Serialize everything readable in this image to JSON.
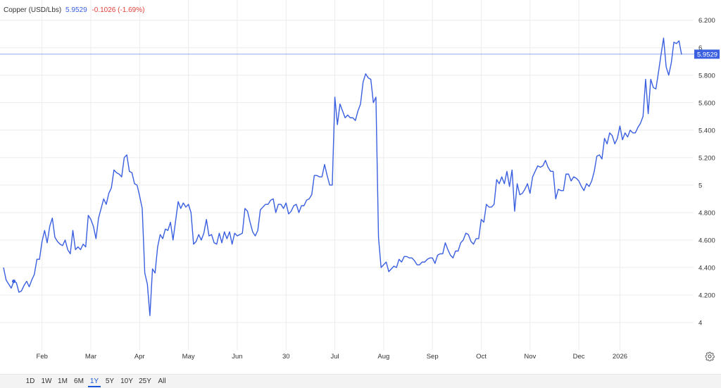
{
  "legend": {
    "name": "Copper (USD/Lbs)",
    "value": "5.9529",
    "change": "-0.1026",
    "change_pct": "(-1.69%)"
  },
  "colors": {
    "line": "#3a5fe0",
    "grid": "#ececec",
    "value_text": "#3a5fe0",
    "change_text": "#e0413a",
    "last_tag_bg": "#3a5fe0",
    "active_range": "#1a56db"
  },
  "range_buttons": [
    {
      "label": "1D",
      "active": false
    },
    {
      "label": "1W",
      "active": false
    },
    {
      "label": "1M",
      "active": false
    },
    {
      "label": "6M",
      "active": false
    },
    {
      "label": "1Y",
      "active": true
    },
    {
      "label": "5Y",
      "active": false
    },
    {
      "label": "10Y",
      "active": false
    },
    {
      "label": "25Y",
      "active": false
    },
    {
      "label": "All",
      "active": false
    }
  ],
  "settings_icon": "gear-icon",
  "chart_data": {
    "type": "line",
    "title": "",
    "xlabel": "",
    "ylabel": "",
    "ylim": [
      3.8,
      6.26
    ],
    "grid": true,
    "y_ticks": [
      "4",
      "4.200",
      "4.400",
      "4.600",
      "4.800",
      "5",
      "5.200",
      "5.400",
      "5.600",
      "5.800",
      "6",
      "6.200"
    ],
    "y_tick_values": [
      4.0,
      4.2,
      4.4,
      4.6,
      4.8,
      5.0,
      5.2,
      5.4,
      5.6,
      5.8,
      6.0,
      6.2
    ],
    "x_ticks": [
      "Feb",
      "Mar",
      "Apr",
      "May",
      "Jun",
      "30",
      "Jul",
      "Aug",
      "Sep",
      "Oct",
      "Nov",
      "Dec",
      "2026"
    ],
    "x_tick_index": [
      15,
      34,
      53,
      72,
      91,
      110,
      129,
      148,
      167,
      186,
      205,
      224,
      240
    ],
    "last_value": 5.9529,
    "last_value_label": "5.9529",
    "series": [
      {
        "values": [
          4.4,
          4.31,
          4.28,
          4.25,
          4.3,
          4.29,
          4.22,
          4.23,
          4.27,
          4.3,
          4.26,
          4.31,
          4.35,
          4.46,
          4.46,
          4.59,
          4.67,
          4.58,
          4.7,
          4.76,
          4.62,
          4.59,
          4.57,
          4.56,
          4.6,
          4.53,
          4.5,
          4.67,
          4.53,
          4.55,
          4.53,
          4.57,
          4.55,
          4.78,
          4.75,
          4.7,
          4.61,
          4.76,
          4.83,
          4.9,
          4.86,
          4.94,
          4.98,
          5.11,
          5.09,
          5.08,
          5.06,
          5.2,
          5.22,
          5.1,
          5.09,
          5.01,
          5.0,
          4.92,
          4.83,
          4.36,
          4.28,
          4.05,
          4.39,
          4.36,
          4.55,
          4.64,
          4.61,
          4.68,
          4.67,
          4.73,
          4.6,
          4.74,
          4.88,
          4.83,
          4.87,
          4.84,
          4.86,
          4.8,
          4.57,
          4.59,
          4.64,
          4.6,
          4.65,
          4.75,
          4.63,
          4.64,
          4.58,
          4.57,
          4.65,
          4.58,
          4.66,
          4.61,
          4.66,
          4.57,
          4.65,
          4.63,
          4.64,
          4.65,
          4.83,
          4.81,
          4.73,
          4.66,
          4.63,
          4.67,
          4.82,
          4.84,
          4.86,
          4.86,
          4.89,
          4.9,
          4.8,
          4.86,
          4.86,
          4.83,
          4.87,
          4.79,
          4.81,
          4.85,
          4.86,
          4.8,
          4.85,
          4.85,
          4.89,
          4.9,
          4.93,
          5.07,
          5.07,
          5.06,
          5.06,
          5.15,
          5.07,
          5.0,
          5.0,
          5.64,
          5.44,
          5.59,
          5.54,
          5.49,
          5.51,
          5.49,
          5.49,
          5.47,
          5.54,
          5.59,
          5.75,
          5.81,
          5.78,
          5.77,
          5.6,
          5.64,
          4.62,
          4.4,
          4.42,
          4.44,
          4.37,
          4.39,
          4.41,
          4.4,
          4.46,
          4.44,
          4.48,
          4.48,
          4.47,
          4.47,
          4.45,
          4.42,
          4.42,
          4.44,
          4.44,
          4.46,
          4.47,
          4.47,
          4.43,
          4.49,
          4.5,
          4.5,
          4.58,
          4.53,
          4.49,
          4.47,
          4.52,
          4.52,
          4.58,
          4.6,
          4.65,
          4.64,
          4.59,
          4.57,
          4.61,
          4.61,
          4.75,
          4.73,
          4.86,
          4.84,
          4.84,
          4.86,
          5.04,
          5.01,
          5.06,
          5.01,
          5.1,
          4.99,
          5.11,
          4.81,
          5.01,
          4.93,
          4.94,
          4.97,
          5.01,
          4.94,
          5.06,
          5.1,
          5.14,
          5.13,
          5.14,
          5.18,
          5.13,
          5.1,
          5.1,
          4.9,
          4.97,
          4.96,
          4.96,
          5.08,
          5.08,
          5.03,
          5.06,
          5.05,
          5.03,
          4.99,
          4.96,
          5.01,
          4.99,
          5.03,
          5.1,
          5.21,
          5.22,
          5.19,
          5.34,
          5.3,
          5.38,
          5.36,
          5.3,
          5.34,
          5.43,
          5.33,
          5.38,
          5.35,
          5.4,
          5.38,
          5.38,
          5.42,
          5.45,
          5.5,
          5.77,
          5.52,
          5.77,
          5.71,
          5.7,
          5.82,
          5.95,
          6.07,
          5.86,
          5.8,
          5.89,
          6.04,
          6.03,
          6.05,
          5.95
        ]
      }
    ]
  }
}
